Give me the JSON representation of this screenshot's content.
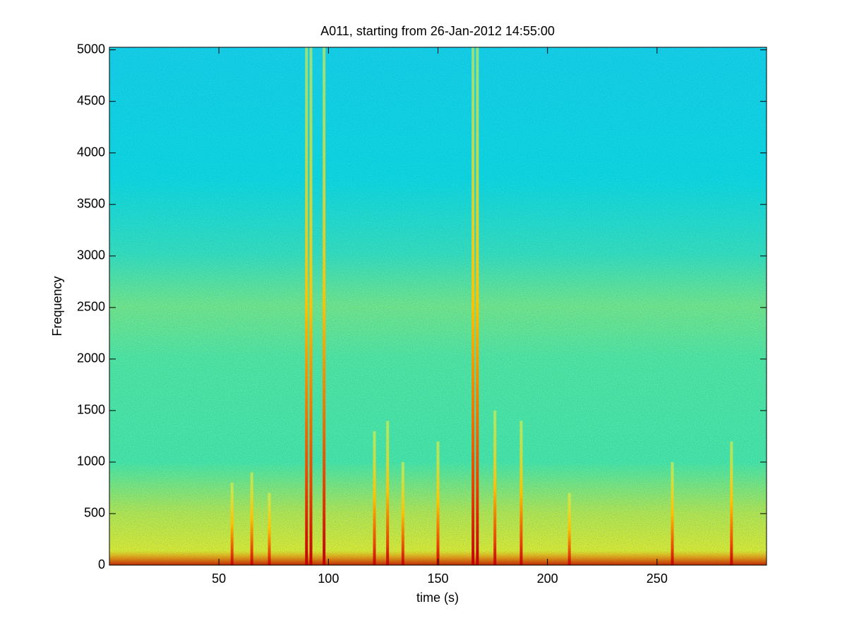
{
  "chart_data": {
    "type": "spectrogram",
    "title": "A011, starting from 26-Jan-2012 14:55:00",
    "x_label": "time (s)",
    "y_label": "Frequency",
    "xlim": [
      0,
      300
    ],
    "ylim": [
      0,
      5025
    ],
    "xticks": [
      50,
      100,
      150,
      200,
      250
    ],
    "yticks": [
      0,
      500,
      1000,
      1500,
      2000,
      2500,
      3000,
      3500,
      4000,
      4500,
      5000
    ],
    "x": [
      56,
      65,
      73,
      90,
      92,
      98,
      121,
      127,
      134,
      150,
      166,
      168,
      176,
      188,
      210,
      257,
      284
    ],
    "values": [
      800,
      900,
      700,
      5025,
      5025,
      5025,
      1300,
      1400,
      1000,
      1200,
      5025,
      5025,
      1500,
      1400,
      700,
      1000,
      1200
    ]
  }
}
